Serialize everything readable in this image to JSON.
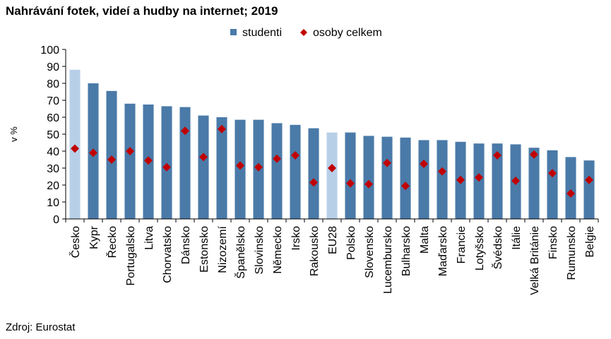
{
  "title": "Nahrávání fotek, videí a hudby na internet; 2019",
  "source": "Zdroj: Eurostat",
  "colors": {
    "bar": "#4a7aa8",
    "bar_highlight": "#b8cfe8",
    "marker": "#c00000",
    "axis": "#000000",
    "grid": "#d9d9d9"
  },
  "chart_data": {
    "type": "bar",
    "ylabel": "v %",
    "ylim": [
      0,
      100
    ],
    "yticks": [
      0,
      10,
      20,
      30,
      40,
      50,
      60,
      70,
      80,
      90,
      100
    ],
    "grid": false,
    "legend_position": "top-center",
    "categories": [
      "Česko",
      "Kypr",
      "Řecko",
      "Portugalsko",
      "Litva",
      "Chorvatsko",
      "Dánsko",
      "Estonsko",
      "Nizozemí",
      "Španělsko",
      "Slovinsko",
      "Německo",
      "Irsko",
      "Rakousko",
      "EU28",
      "Polsko",
      "Slovensko",
      "Lucembursko",
      "Bulharsko",
      "Malta",
      "Maďarsko",
      "Francie",
      "Lotyšsko",
      "Švédsko",
      "Itálie",
      "Velká Británie",
      "Finsko",
      "Rumunsko",
      "Belgie"
    ],
    "highlight_categories": [
      "Česko",
      "EU28"
    ],
    "series": [
      {
        "name": "studenti",
        "kind": "bar",
        "values": [
          88,
          80,
          75.5,
          68,
          67.5,
          66.5,
          66,
          61,
          60,
          58.5,
          58.5,
          56.5,
          55.5,
          53.5,
          51,
          51,
          49,
          48.5,
          48,
          46.5,
          46.5,
          45.5,
          44.5,
          44.5,
          44,
          42,
          40.5,
          36.5,
          34.5
        ]
      },
      {
        "name": "osoby celkem",
        "kind": "marker",
        "values": [
          41.5,
          39,
          35,
          40,
          34.5,
          30.5,
          52,
          36.5,
          53,
          31.5,
          30.5,
          35.5,
          37.5,
          21.5,
          30,
          21,
          20.5,
          33,
          19.5,
          32.5,
          28,
          23,
          24.5,
          37.5,
          22.5,
          38,
          27,
          15,
          23
        ]
      }
    ]
  }
}
